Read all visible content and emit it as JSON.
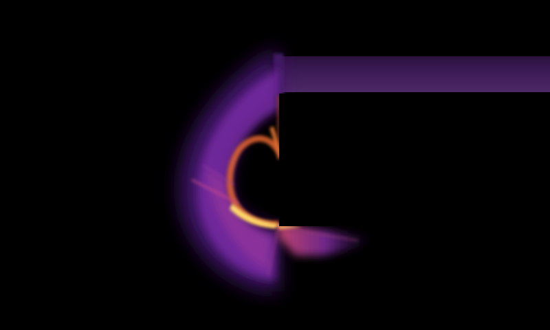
{
  "image": {
    "subject": "",
    "colormap": "inferno",
    "colors": {
      "background": "#000000",
      "dark_purple": "#2a0a4a",
      "violet": "#6a1fa0",
      "magenta": "#a8309a",
      "orange": "#e8602a",
      "yellow": "#ffd86a",
      "beam": "#4a2563"
    }
  }
}
